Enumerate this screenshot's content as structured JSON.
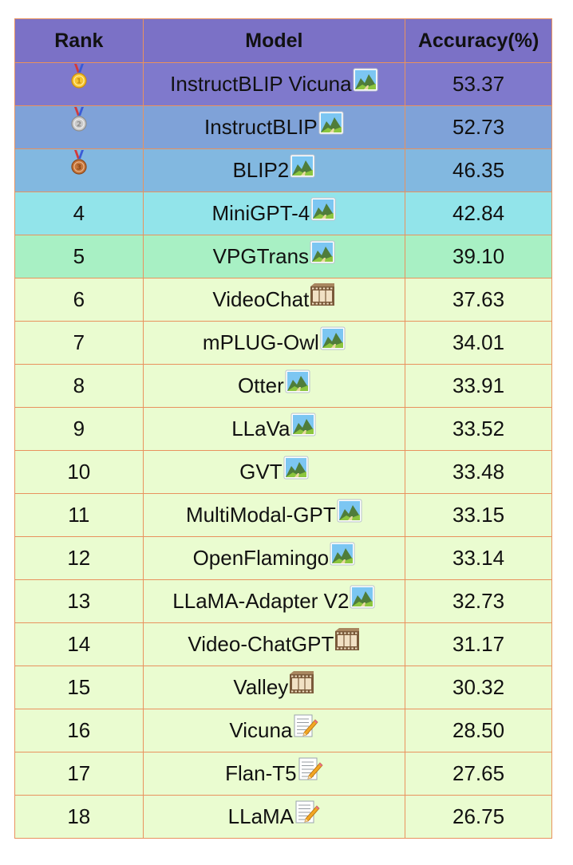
{
  "headers": {
    "rank": "Rank",
    "model": "Model",
    "accuracy": "Accuracy(%)"
  },
  "colors": {
    "header": "#7b71c6",
    "gold_row": "#7f79cc",
    "silver_row": "#7fa2d8",
    "bronze_row": "#82b8e0",
    "rank4_row": "#92e4ea",
    "rank5_row": "#a8f0c4",
    "default_row": "#eafcd0",
    "border": "#e9925e"
  },
  "rows": [
    {
      "rank": "",
      "medal": "gold-medal",
      "model": "InstructBLIP Vicuna",
      "icon": "image-icon",
      "accuracy": "53.37",
      "bg": "gold_row"
    },
    {
      "rank": "",
      "medal": "silver-medal",
      "model": "InstructBLIP",
      "icon": "image-icon",
      "accuracy": "52.73",
      "bg": "silver_row"
    },
    {
      "rank": "",
      "medal": "bronze-medal",
      "model": "BLIP2",
      "icon": "image-icon",
      "accuracy": "46.35",
      "bg": "bronze_row"
    },
    {
      "rank": "4",
      "model": "MiniGPT-4",
      "icon": "image-icon",
      "accuracy": "42.84",
      "bg": "rank4_row"
    },
    {
      "rank": "5",
      "model": "VPGTrans",
      "icon": "image-icon",
      "accuracy": "39.10",
      "bg": "rank5_row"
    },
    {
      "rank": "6",
      "model": "VideoChat",
      "icon": "film-icon",
      "accuracy": "37.63",
      "bg": "default_row"
    },
    {
      "rank": "7",
      "model": "mPLUG-Owl",
      "icon": "image-icon",
      "accuracy": "34.01",
      "bg": "default_row"
    },
    {
      "rank": "8",
      "model": "Otter",
      "icon": "image-icon",
      "accuracy": "33.91",
      "bg": "default_row"
    },
    {
      "rank": "9",
      "model": "LLaVa",
      "icon": "image-icon",
      "accuracy": "33.52",
      "bg": "default_row"
    },
    {
      "rank": "10",
      "model": "GVT",
      "icon": "image-icon",
      "accuracy": "33.48",
      "bg": "default_row"
    },
    {
      "rank": "11",
      "model": "MultiModal-GPT",
      "icon": "image-icon",
      "accuracy": "33.15",
      "bg": "default_row"
    },
    {
      "rank": "12",
      "model": "OpenFlamingo",
      "icon": "image-icon",
      "accuracy": "33.14",
      "bg": "default_row"
    },
    {
      "rank": "13",
      "model": "LLaMA-Adapter V2",
      "icon": "image-icon",
      "accuracy": "32.73",
      "bg": "default_row"
    },
    {
      "rank": "14",
      "model": "Video-ChatGPT",
      "icon": "film-icon",
      "accuracy": "31.17",
      "bg": "default_row"
    },
    {
      "rank": "15",
      "model": "Valley",
      "icon": "film-icon",
      "accuracy": "30.32",
      "bg": "default_row"
    },
    {
      "rank": "16",
      "model": "Vicuna",
      "icon": "memo-icon",
      "accuracy": "28.50",
      "bg": "default_row"
    },
    {
      "rank": "17",
      "model": "Flan-T5",
      "icon": "memo-icon",
      "accuracy": "27.65",
      "bg": "default_row"
    },
    {
      "rank": "18",
      "model": "LLaMA",
      "icon": "memo-icon",
      "accuracy": "26.75",
      "bg": "default_row"
    }
  ]
}
